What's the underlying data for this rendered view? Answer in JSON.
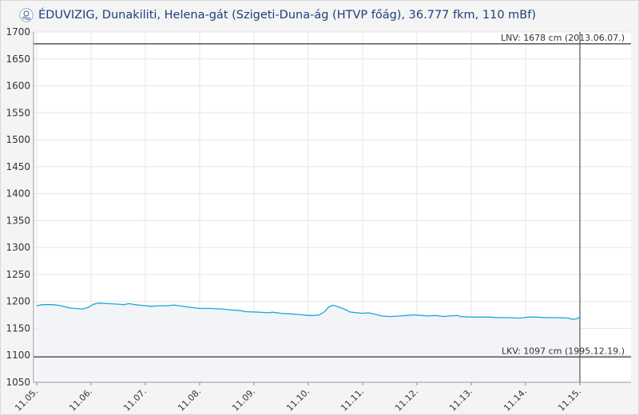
{
  "header": {
    "logo": "eduvizig-logo",
    "title": "ÉDUVIZIG, Dunakiliti, Helena-gát (Szigeti-Duna-ág (HTVP főág), 36.777 fkm, 110 mBf)"
  },
  "chart_data": {
    "type": "area",
    "title": "ÉDUVIZIG, Dunakiliti, Helena-gát (Szigeti-Duna-ág (HTVP főág), 36.777 fkm, 110 mBf)",
    "xlabel": "",
    "ylabel": "",
    "ylim": [
      1050,
      1700
    ],
    "yticks": [
      1050,
      1100,
      1150,
      1200,
      1250,
      1300,
      1350,
      1400,
      1450,
      1500,
      1550,
      1600,
      1650,
      1700
    ],
    "x_ticks": [
      "11.05.",
      "11.06.",
      "11.07.",
      "11.08.",
      "11.09.",
      "11.10.",
      "11.11.",
      "11.12.",
      "11.13.",
      "11.14.",
      "11.15."
    ],
    "xlim": [
      0,
      10.75
    ],
    "grid": true,
    "colors": {
      "line": "#1aa7d8",
      "fill": "#f2f4f8",
      "reference": "#555555"
    },
    "reference_lines": [
      {
        "value": 1678,
        "label": "LNV: 1678 cm (2013.06.07.)"
      },
      {
        "value": 1097,
        "label": "LKV: 1097 cm (1995.12.19.)"
      }
    ],
    "series": [
      {
        "x": [
          0,
          0.1,
          0.3,
          0.45,
          0.6,
          0.7,
          0.85,
          0.95,
          1.05,
          1.15,
          1.3,
          1.5,
          1.6,
          1.7,
          1.8,
          1.9,
          2.1,
          2.25,
          2.4,
          2.5,
          2.55,
          2.75,
          3.0,
          3.2,
          3.4,
          3.6,
          3.75,
          3.85,
          4.1,
          4.25,
          4.35,
          4.5,
          4.65,
          4.8,
          5.0,
          5.1,
          5.2,
          5.3,
          5.38,
          5.45,
          5.55,
          5.7,
          5.75,
          5.8,
          5.9,
          6.0,
          6.1,
          6.2,
          6.35,
          6.5,
          6.7,
          6.8,
          6.95,
          7.1,
          7.2,
          7.35,
          7.5,
          7.6,
          7.75,
          7.8,
          8.0,
          8.2,
          8.35,
          8.5,
          8.7,
          8.9,
          9.05,
          9.2,
          9.4,
          9.6,
          9.8,
          9.85,
          9.9,
          9.95,
          10.0
        ],
        "y": [
          1192,
          1194,
          1194,
          1192,
          1188,
          1187,
          1186,
          1189,
          1195,
          1197,
          1196,
          1195,
          1194,
          1196,
          1194,
          1193,
          1191,
          1192,
          1192,
          1193,
          1193,
          1190,
          1187,
          1187,
          1186,
          1184,
          1183,
          1181,
          1180,
          1179,
          1180,
          1178,
          1177,
          1176,
          1174,
          1174,
          1175,
          1181,
          1190,
          1193,
          1190,
          1184,
          1181,
          1180,
          1179,
          1178,
          1179,
          1177,
          1173,
          1172,
          1173,
          1174,
          1175,
          1174,
          1173,
          1174,
          1172,
          1173,
          1174,
          1172,
          1171,
          1171,
          1171,
          1170,
          1170,
          1169,
          1171,
          1171,
          1170,
          1170,
          1169,
          1167,
          1167,
          1168,
          1171
        ]
      }
    ],
    "marker_x": 10
  }
}
